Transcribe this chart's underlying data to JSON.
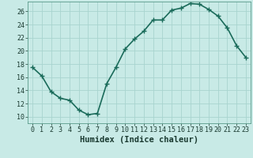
{
  "x": [
    0,
    1,
    2,
    3,
    4,
    5,
    6,
    7,
    8,
    9,
    10,
    11,
    12,
    13,
    14,
    15,
    16,
    17,
    18,
    19,
    20,
    21,
    22,
    23
  ],
  "y": [
    17.5,
    16.2,
    13.8,
    12.8,
    12.5,
    11.0,
    10.3,
    10.5,
    15.0,
    17.5,
    20.3,
    21.8,
    23.0,
    24.7,
    24.7,
    26.2,
    26.5,
    27.2,
    27.1,
    26.3,
    25.3,
    23.5,
    20.8,
    19.0
  ],
  "bg_color": "#c8eae6",
  "grid_color": "#a8d4cf",
  "line_color": "#1a6b5a",
  "marker_color": "#1a6b5a",
  "xlabel": "Humidex (Indice chaleur)",
  "ylim": [
    9,
    27.5
  ],
  "yticks": [
    10,
    12,
    14,
    16,
    18,
    20,
    22,
    24,
    26
  ],
  "xticks": [
    0,
    1,
    2,
    3,
    4,
    5,
    6,
    7,
    8,
    9,
    10,
    11,
    12,
    13,
    14,
    15,
    16,
    17,
    18,
    19,
    20,
    21,
    22,
    23
  ],
  "xlabel_fontsize": 7.5,
  "tick_fontsize": 6,
  "line_width": 1.2,
  "marker_size": 2.5
}
